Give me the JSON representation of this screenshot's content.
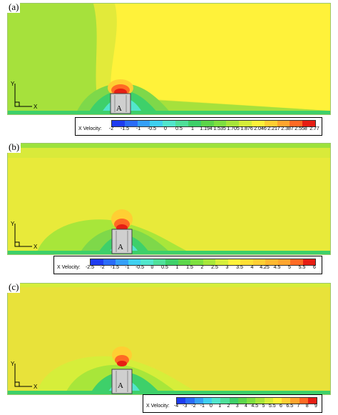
{
  "panels": [
    {
      "label": "(a)",
      "colorbar": {
        "title": "X Velocity:",
        "ticks": [
          "-2",
          "-1.5",
          "-1",
          "-0.5",
          "0",
          "0.5",
          "1",
          "1.194",
          "1.535",
          "1.705",
          "1.876",
          "2.046",
          "2.217",
          "2.387",
          "2.558",
          "2.77"
        ],
        "colors": [
          "#1e3cf0",
          "#2a6cf8",
          "#35a0f8",
          "#3fd0f0",
          "#52e6cc",
          "#4fe09a",
          "#3ed06a",
          "#5cd64a",
          "#7ee040",
          "#a8e63a",
          "#d6ee3a",
          "#fff23a",
          "#ffcf33",
          "#ffa52e",
          "#ff6a24",
          "#e61e14"
        ]
      },
      "cylinder_label": "A",
      "axis_x": "X",
      "axis_y": "Y"
    },
    {
      "label": "(b)",
      "colorbar": {
        "title": "X Velocity:",
        "ticks": [
          "-2.5",
          "-2",
          "-1.5",
          "-1",
          "-0.5",
          "0",
          "0.5",
          "1",
          "1.5",
          "2",
          "2.5",
          "3",
          "3.5",
          "4",
          "4.25",
          "4.5",
          "5",
          "5.5",
          "6"
        ],
        "colors": [
          "#1e3cf0",
          "#2a6cf8",
          "#35a0f8",
          "#3fd0f0",
          "#52e6cc",
          "#4fe09a",
          "#3ed06a",
          "#5cd64a",
          "#7ee040",
          "#a8e63a",
          "#d6ee3a",
          "#fff23a",
          "#ffdf35",
          "#ffcf33",
          "#ffb830",
          "#ffa52e",
          "#ff6a24",
          "#e61e14"
        ]
      },
      "cylinder_label": "A",
      "axis_x": "X",
      "axis_y": "Y"
    },
    {
      "label": "(c)",
      "colorbar": {
        "title": "X Velocity:",
        "ticks": [
          "-4",
          "-3",
          "-2",
          "-1",
          "0",
          "1",
          "2",
          "3",
          "4",
          "4.5",
          "5",
          "5.5",
          "6",
          "6.5",
          "7",
          "8",
          "9"
        ],
        "colors": [
          "#1e3cf0",
          "#2a6cf8",
          "#35a0f8",
          "#3fd0f0",
          "#52e6cc",
          "#4fe09a",
          "#3ed06a",
          "#5cd64a",
          "#7ee040",
          "#a8e63a",
          "#d6ee3a",
          "#fff23a",
          "#ffcf33",
          "#ffa52e",
          "#ff6a24",
          "#e61e14"
        ]
      },
      "cylinder_label": "A",
      "axis_x": "X",
      "axis_y": "Y"
    }
  ],
  "field_colors": {
    "freestream_green": "#9ce23c",
    "freestream_yellow": "#e6ea3c",
    "wake_yellow": "#fff23a",
    "wall_green": "#3ed06a"
  }
}
